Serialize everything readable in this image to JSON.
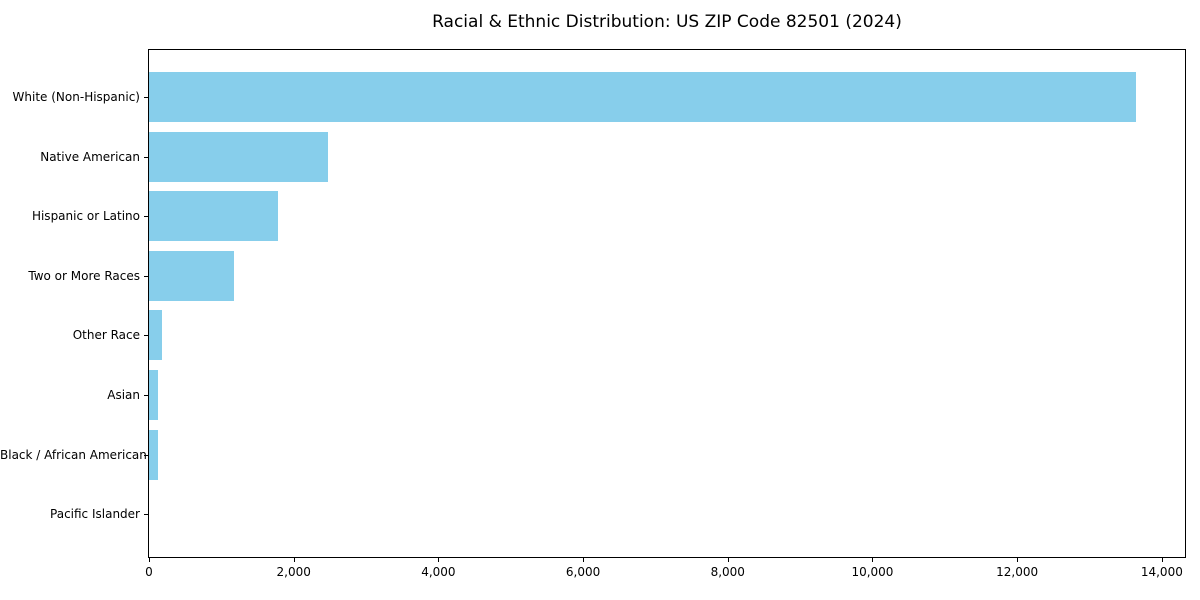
{
  "chart_data": {
    "type": "bar",
    "orientation": "horizontal",
    "title": "Racial & Ethnic Distribution: US ZIP Code 82501 (2024)",
    "categories": [
      "White (Non-Hispanic)",
      "Native American",
      "Hispanic or Latino",
      "Two or More Races",
      "Other Race",
      "Asian",
      "Black / African American",
      "Pacific Islander"
    ],
    "values": [
      13640,
      2470,
      1780,
      1170,
      180,
      130,
      120,
      0
    ],
    "bar_color": "#87CEEB",
    "background_color": "#ffffff",
    "text_color": "#000000",
    "frame_color": "#000000",
    "xlabel": "",
    "ylabel": "",
    "xlim": [
      0,
      14320
    ],
    "x_ticks": [
      0,
      2000,
      4000,
      6000,
      8000,
      10000,
      12000,
      14000
    ],
    "x_tick_labels": [
      "0",
      "2,000",
      "4,000",
      "6,000",
      "8,000",
      "10,000",
      "12,000",
      "14,000"
    ],
    "grid": false,
    "legend": false
  }
}
